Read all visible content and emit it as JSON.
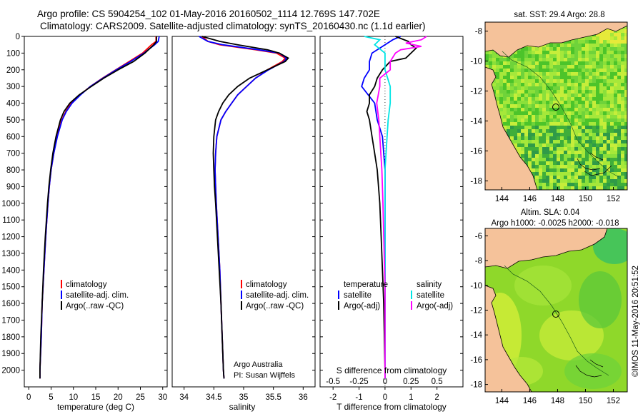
{
  "header": {
    "title_line1": "Argo profile: CS 5904254_102 01-May-2016 20160502_1114 12.769S 147.702E",
    "title_line2": "Climatology: CARS2009. Satellite-adjusted climatology: synTS_20160430.nc (1.1d earlier)"
  },
  "colors": {
    "climatology": "#ff0000",
    "satellite": "#0000ff",
    "argo": "#000000",
    "sal_satellite": "#00e5e5",
    "sal_argo": "#ff00ff",
    "land": "#f5c29a",
    "ocean_sst": "#5cd22a",
    "ocean_sla": "#8fe02a"
  },
  "chart_data": [
    {
      "type": "line",
      "panel": "temperature",
      "xlabel": "temperature (deg C)",
      "ylabel": "",
      "xlim": [
        -1,
        31
      ],
      "ylim": [
        2100,
        0
      ],
      "xticks": [
        0,
        5,
        10,
        15,
        20,
        25,
        30
      ],
      "yticks": [
        0,
        100,
        200,
        300,
        400,
        500,
        600,
        700,
        800,
        900,
        1000,
        1100,
        1200,
        1300,
        1400,
        1500,
        1600,
        1700,
        1800,
        1900,
        2000
      ],
      "legend": [
        "climatology",
        "satellite-adj. clim.",
        "Argo(..raw -QC)"
      ],
      "series": [
        {
          "name": "climatology",
          "depth": [
            0,
            30,
            50,
            100,
            150,
            200,
            250,
            300,
            350,
            400,
            450,
            500,
            600,
            700,
            800,
            900,
            1000,
            1200,
            1400,
            1600,
            1800,
            2000,
            2050
          ],
          "values": [
            28.5,
            28.5,
            27.5,
            25.5,
            22.5,
            19.5,
            16.5,
            13.8,
            11.5,
            9.5,
            8.3,
            7.4,
            6.3,
            5.6,
            5.0,
            4.6,
            4.3,
            3.8,
            3.4,
            3.0,
            2.8,
            2.5,
            2.5
          ]
        },
        {
          "name": "satellite-adj. clim.",
          "depth": [
            0,
            30,
            50,
            100,
            150,
            200,
            250,
            300,
            350,
            400,
            450,
            500,
            600,
            700,
            800,
            900,
            1000,
            1200,
            1400,
            1600,
            1800,
            2000,
            2050
          ],
          "values": [
            29.2,
            29.0,
            28.2,
            25.8,
            22.8,
            19.6,
            16.6,
            13.8,
            11.6,
            9.7,
            8.4,
            7.5,
            6.4,
            5.6,
            5.0,
            4.6,
            4.3,
            3.8,
            3.4,
            3.0,
            2.8,
            2.5,
            2.5
          ]
        },
        {
          "name": "Argo(..raw -QC)",
          "depth": [
            0,
            30,
            50,
            100,
            150,
            200,
            250,
            300,
            350,
            400,
            450,
            500,
            600,
            700,
            800,
            900,
            1000,
            1200,
            1400,
            1600,
            1800,
            2000,
            2050
          ],
          "values": [
            28.6,
            28.6,
            28.0,
            26.0,
            23.5,
            20.0,
            16.8,
            14.0,
            11.3,
            9.2,
            7.9,
            7.1,
            6.1,
            5.4,
            4.9,
            4.5,
            4.2,
            3.7,
            3.3,
            3.0,
            2.7,
            2.5,
            2.5
          ]
        }
      ]
    },
    {
      "type": "line",
      "panel": "salinity",
      "xlabel": "salinity",
      "xlim": [
        33.8,
        36.2
      ],
      "ylim": [
        2100,
        0
      ],
      "xticks": [
        34,
        34.5,
        35,
        35.5,
        36
      ],
      "legend": [
        "climatology",
        "satellite-adj. clim.",
        "Argo(..raw -QC)"
      ],
      "series": [
        {
          "name": "climatology",
          "depth": [
            0,
            30,
            50,
            80,
            100,
            130,
            150,
            200,
            250,
            300,
            350,
            400,
            450,
            500,
            600,
            700,
            800,
            900,
            1000,
            1200,
            1400,
            1600,
            1800,
            2000,
            2050
          ],
          "values": [
            34.3,
            34.4,
            34.6,
            35.2,
            35.55,
            35.7,
            35.65,
            35.4,
            35.2,
            35.05,
            34.9,
            34.8,
            34.7,
            34.62,
            34.55,
            34.53,
            34.52,
            34.53,
            34.54,
            34.57,
            34.6,
            34.62,
            34.64,
            34.66,
            34.67
          ]
        },
        {
          "name": "satellite-adj. clim.",
          "depth": [
            0,
            30,
            50,
            80,
            100,
            130,
            150,
            200,
            250,
            300,
            350,
            400,
            450,
            500,
            600,
            700,
            800,
            900,
            1000,
            1200,
            1400,
            1600,
            1800,
            2000,
            2050
          ],
          "values": [
            34.25,
            34.4,
            34.65,
            35.25,
            35.6,
            35.72,
            35.68,
            35.42,
            35.2,
            35.05,
            34.9,
            34.8,
            34.7,
            34.62,
            34.55,
            34.53,
            34.52,
            34.53,
            34.54,
            34.57,
            34.6,
            34.62,
            34.64,
            34.66,
            34.67
          ]
        },
        {
          "name": "Argo(..raw -QC)",
          "depth": [
            0,
            30,
            50,
            80,
            100,
            130,
            150,
            200,
            250,
            300,
            350,
            400,
            450,
            500,
            600,
            700,
            800,
            900,
            1000,
            1200,
            1400,
            1600,
            1800,
            2000,
            2050
          ],
          "values": [
            34.3,
            34.6,
            34.9,
            35.4,
            35.6,
            35.75,
            35.7,
            35.4,
            35.1,
            34.9,
            34.75,
            34.65,
            34.58,
            34.53,
            34.5,
            34.49,
            34.5,
            34.51,
            34.53,
            34.56,
            34.59,
            34.62,
            34.64,
            34.66,
            34.67
          ]
        }
      ],
      "annotation_line1": "Argo Australia",
      "annotation_line2": "PI: Susan Wijffels"
    },
    {
      "type": "line",
      "panel": "difference",
      "xlabel": "T difference from climatology",
      "xlabel_top": "S difference from climatology",
      "xlim_T": [
        -2.5,
        3
      ],
      "ylim": [
        2100,
        0
      ],
      "xticks_T": [
        -2,
        -1,
        0,
        1,
        2
      ],
      "xticks_S": [
        "-0.5",
        "-0.25",
        "0",
        "0.25",
        "0.5"
      ],
      "legend_temperature": [
        "temperature",
        "satellite",
        "Argo(-adj)"
      ],
      "legend_salinity": [
        "salinity",
        "satellite",
        "Argo(-adj)"
      ],
      "series": [
        {
          "name": "T satellite",
          "depth": [
            0,
            20,
            50,
            80,
            100,
            150,
            200,
            250,
            300,
            400,
            500,
            600,
            800,
            1000,
            1500,
            2000,
            2050
          ],
          "values": [
            0.6,
            0.3,
            0.0,
            -0.3,
            -0.5,
            -0.6,
            -0.6,
            -0.8,
            -0.9,
            -0.4,
            -0.3,
            -0.1,
            0.0,
            0.0,
            0.0,
            0.0,
            0.0
          ]
        },
        {
          "name": "T Argo(-adj)",
          "depth": [
            0,
            30,
            50,
            70,
            100,
            130,
            150,
            200,
            250,
            300,
            350,
            400,
            450,
            500,
            600,
            700,
            800,
            1000,
            1200,
            1400,
            1600,
            2000,
            2050
          ],
          "values": [
            0.4,
            0.9,
            1.0,
            1.2,
            1.0,
            0.8,
            0.2,
            -0.1,
            -0.3,
            -0.4,
            -0.6,
            -0.6,
            -0.7,
            -0.6,
            -0.5,
            -0.4,
            -0.3,
            -0.2,
            -0.15,
            -0.1,
            -0.05,
            0.0,
            0.0
          ]
        },
        {
          "name": "S satellite",
          "depth": [
            0,
            20,
            50,
            100,
            150,
            200,
            300,
            400,
            500,
            600,
            800,
            1000,
            1500,
            2000,
            2050
          ],
          "values": [
            -0.2,
            -0.05,
            -0.1,
            0.0,
            0.0,
            0.0,
            0.05,
            0.05,
            0.03,
            0.02,
            0.0,
            0.0,
            0.0,
            0.0,
            0.0
          ]
        },
        {
          "name": "S Argo(-adj)",
          "depth": [
            0,
            20,
            40,
            60,
            80,
            100,
            150,
            200,
            250,
            300,
            400,
            500,
            600,
            800,
            1000,
            1500,
            2000,
            2050
          ],
          "values": [
            0.4,
            0.35,
            0.2,
            0.35,
            0.15,
            0.1,
            0.05,
            0.05,
            -0.05,
            -0.05,
            -0.08,
            -0.06,
            -0.05,
            -0.03,
            -0.02,
            0.0,
            0.0,
            0.0
          ]
        }
      ]
    },
    {
      "type": "heatmap",
      "panel": "sst_map",
      "title": "sat. SST: 29.4 Argo: 28.8",
      "xticks": [
        144,
        146,
        148,
        150,
        152
      ],
      "yticks": [
        -8,
        -10,
        -12,
        -14,
        -16,
        -18
      ],
      "xlim": [
        142.8,
        153
      ],
      "ylim": [
        -18.6,
        -7.4
      ],
      "float_position": {
        "lon": 147.702,
        "lat": -12.769
      }
    },
    {
      "type": "heatmap",
      "panel": "sla_map",
      "title": "Altim. SLA: 0.04",
      "subtitle": "Argo h1000: -0.0025 h2000: -0.018",
      "xticks": [
        144,
        146,
        148,
        150,
        152
      ],
      "yticks": [
        -6,
        -8,
        -10,
        -12,
        -14,
        -16,
        -18
      ],
      "xlim": [
        142.8,
        153
      ],
      "ylim": [
        -18.6,
        -5.4
      ],
      "float_position": {
        "lon": 147.702,
        "lat": -12.769
      }
    }
  ],
  "footer": {
    "watermark": "©IMOS 11-May-2016 20:51:52"
  }
}
